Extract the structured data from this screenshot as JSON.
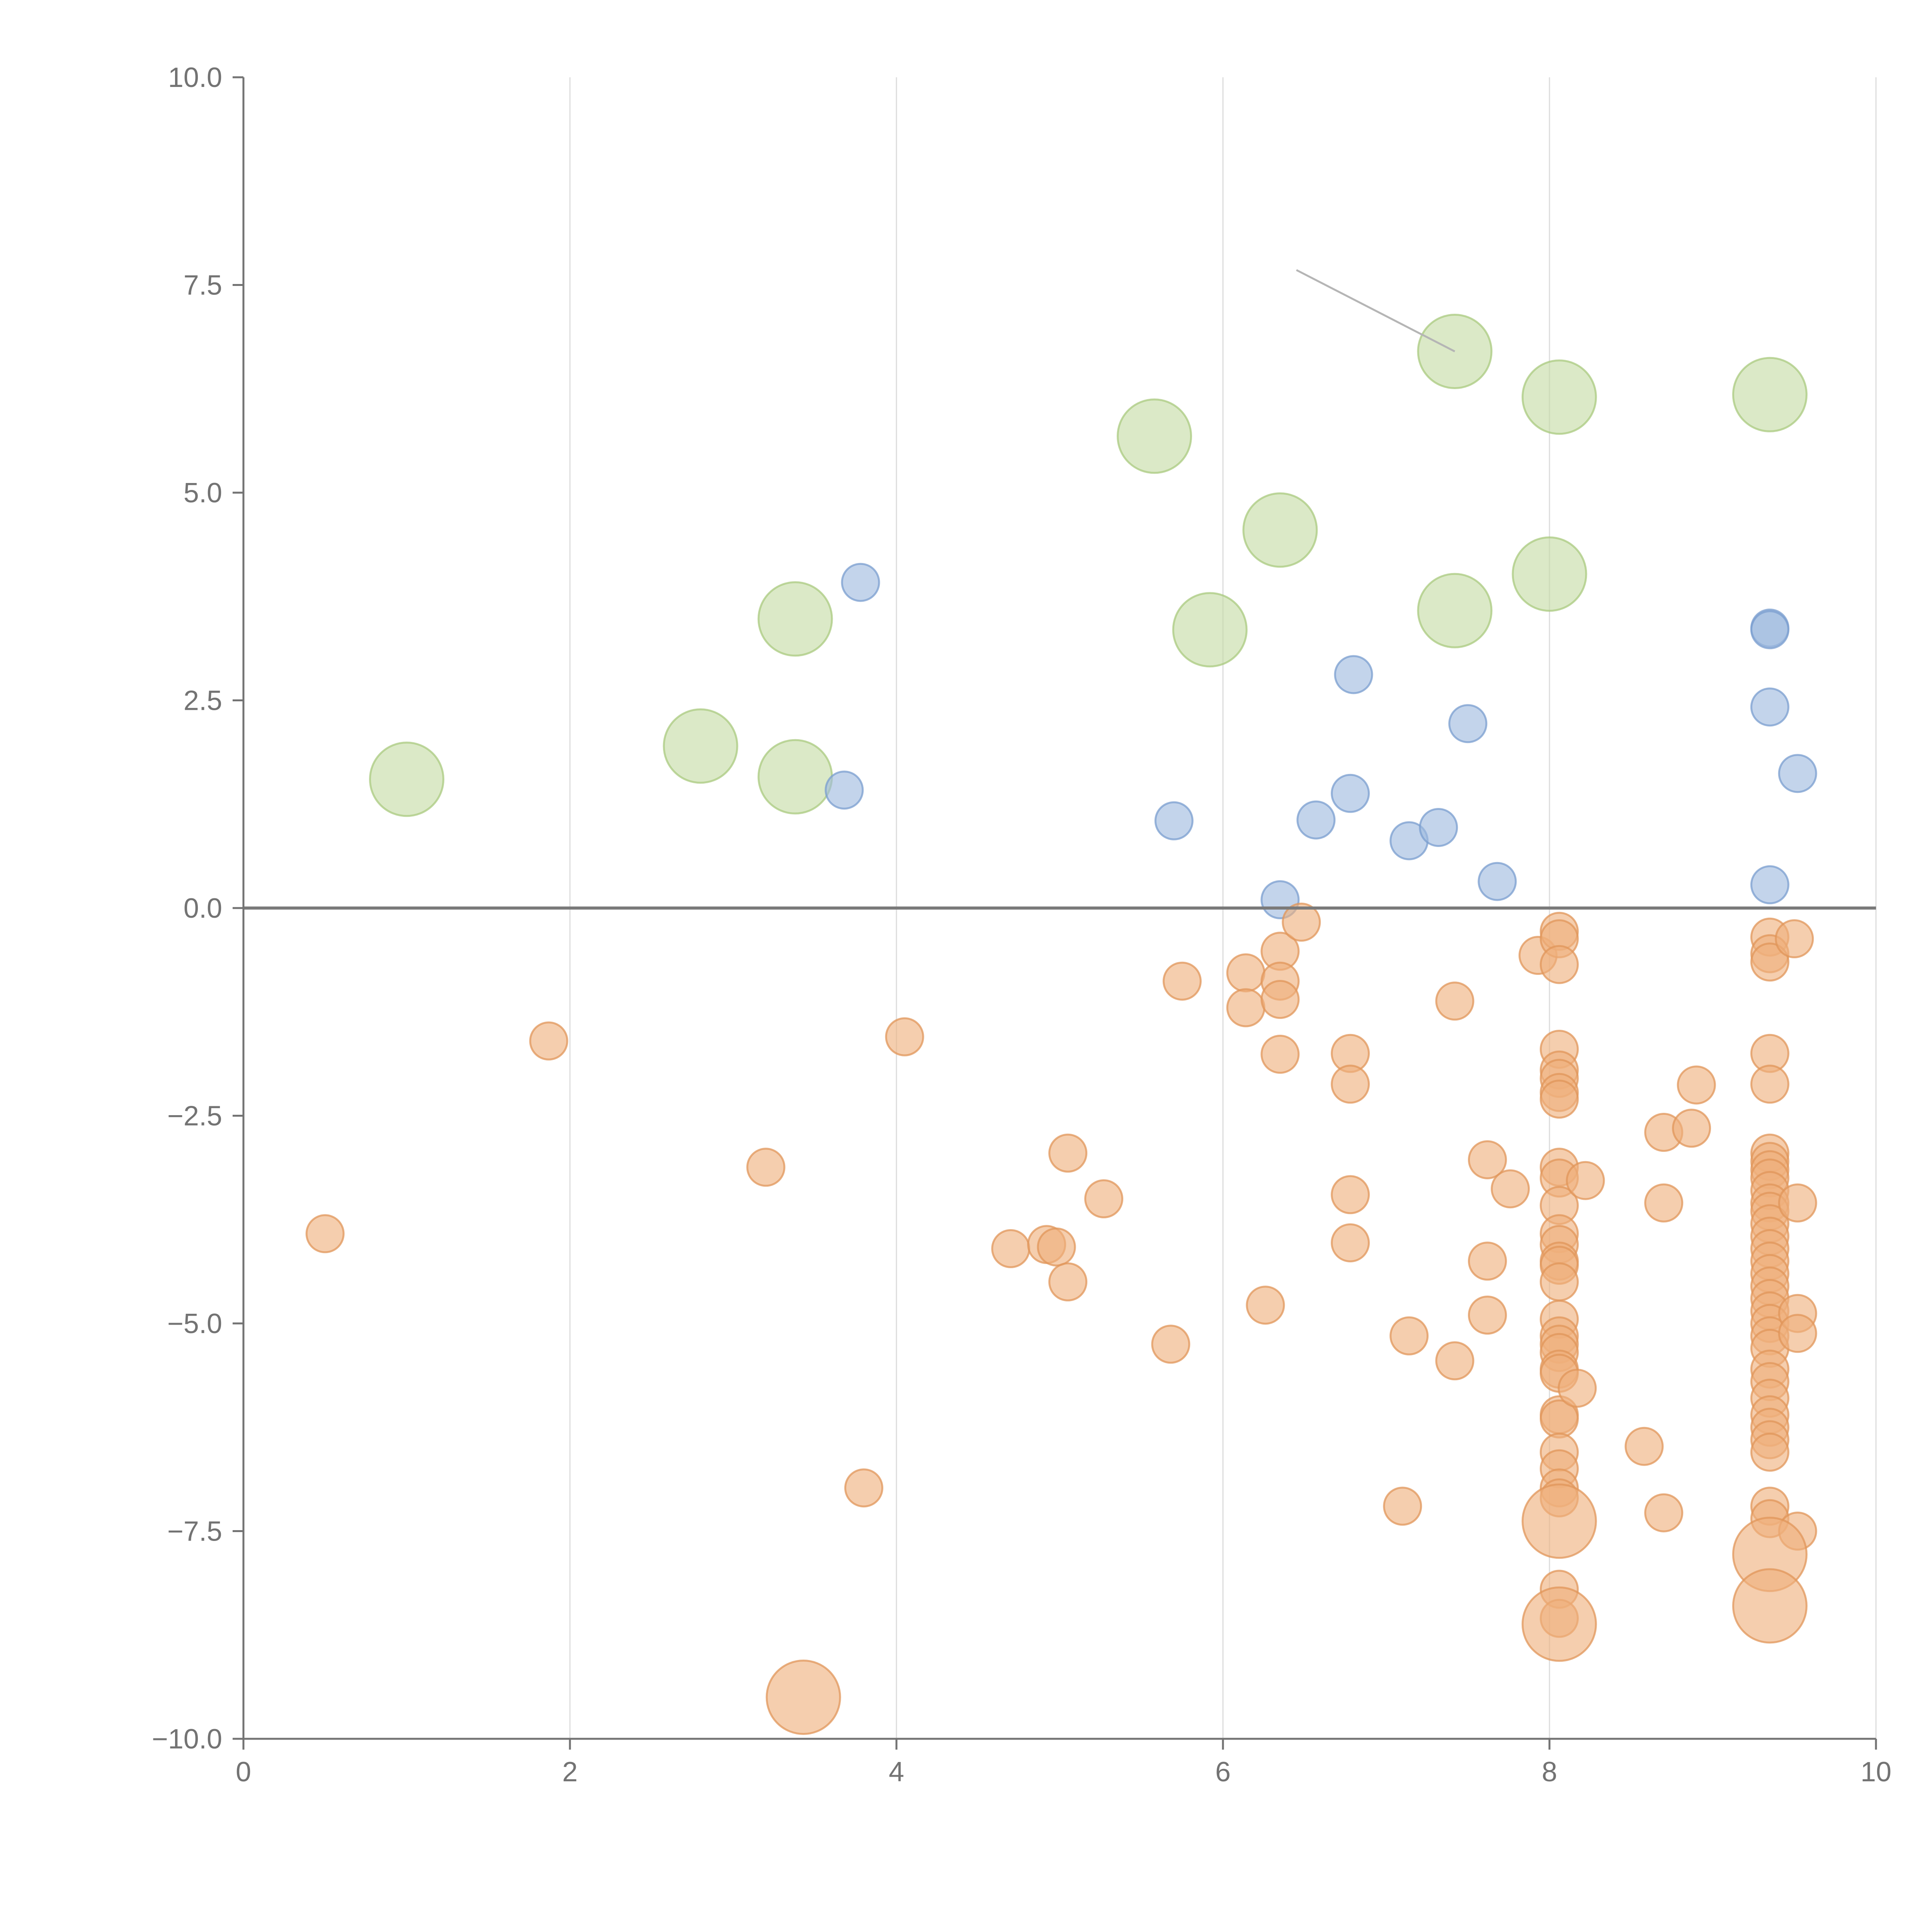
{
  "chart_data": {
    "type": "scatter",
    "title": "",
    "xlabel": "",
    "ylabel": "",
    "xlim": [
      0,
      10
    ],
    "ylim": [
      -10,
      10
    ],
    "x_ticks": [
      0,
      2,
      4,
      6,
      8,
      10
    ],
    "x_tick_labels": [
      "0",
      "2",
      "4",
      "6",
      "8",
      "10"
    ],
    "y_ticks": [
      10,
      7.5,
      5,
      2.5,
      0,
      -2.5,
      -5,
      -7.5,
      -10
    ],
    "y_tick_labels": [
      "10.0",
      "7.5",
      "5.0",
      "2.5",
      "0.0",
      "−2.5",
      "−5.0",
      "−7.5",
      "−10.0"
    ],
    "vertical_grid": true,
    "horizontal_grid": false,
    "zero_line": true,
    "legend": "none",
    "colors": {
      "green": "#c5dca4",
      "green_stroke": "#a9c97f",
      "blue": "#9eb9de",
      "blue_stroke": "#7a9dcf",
      "orange": "#efb07d",
      "orange_stroke": "#e0955a",
      "axis": "#737373",
      "grid": "#dcdcdc",
      "zero_line": "#7a7a7a"
    },
    "series": [
      {
        "name": "green",
        "size": "large",
        "points": [
          [
            1.0,
            1.55
          ],
          [
            2.8,
            1.95
          ],
          [
            3.38,
            1.58
          ],
          [
            3.38,
            3.48
          ],
          [
            5.58,
            5.68
          ],
          [
            5.92,
            3.35
          ],
          [
            6.35,
            4.55
          ],
          [
            7.42,
            6.7
          ],
          [
            7.42,
            3.58
          ],
          [
            8.0,
            4.02
          ],
          [
            8.06,
            6.15
          ],
          [
            9.35,
            6.18
          ]
        ]
      },
      {
        "name": "blue",
        "size": "small",
        "points": [
          [
            3.78,
            3.92
          ],
          [
            3.68,
            1.42
          ],
          [
            5.7,
            1.05
          ],
          [
            6.35,
            0.1
          ],
          [
            6.57,
            1.06
          ],
          [
            6.78,
            1.38
          ],
          [
            6.8,
            2.81
          ],
          [
            7.14,
            0.81
          ],
          [
            7.32,
            0.97
          ],
          [
            7.5,
            2.22
          ],
          [
            7.68,
            0.32
          ],
          [
            9.35,
            3.37
          ],
          [
            9.35,
            3.35
          ],
          [
            9.35,
            2.42
          ],
          [
            9.35,
            0.28
          ],
          [
            9.52,
            1.62
          ]
        ]
      },
      {
        "name": "orange",
        "size": "small",
        "points": [
          [
            0.5,
            -3.92
          ],
          [
            1.87,
            -1.6
          ],
          [
            3.2,
            -3.12
          ],
          [
            3.8,
            -6.98
          ],
          [
            4.05,
            -1.55
          ],
          [
            4.7,
            -4.1
          ],
          [
            4.92,
            -4.05
          ],
          [
            4.98,
            -4.08
          ],
          [
            5.05,
            -2.95
          ],
          [
            5.05,
            -4.5
          ],
          [
            5.27,
            -3.5
          ],
          [
            5.68,
            -5.25
          ],
          [
            5.75,
            -0.88
          ],
          [
            6.14,
            -0.78
          ],
          [
            6.14,
            -1.2
          ],
          [
            6.26,
            -4.78
          ],
          [
            6.35,
            -0.52
          ],
          [
            6.35,
            -0.88
          ],
          [
            6.35,
            -1.1
          ],
          [
            6.35,
            -1.76
          ],
          [
            6.48,
            -0.17
          ],
          [
            6.78,
            -1.75
          ],
          [
            6.78,
            -2.12
          ],
          [
            6.78,
            -3.45
          ],
          [
            6.78,
            -4.03
          ],
          [
            7.1,
            -7.2
          ],
          [
            7.14,
            -5.15
          ],
          [
            7.42,
            -1.12
          ],
          [
            7.42,
            -5.45
          ],
          [
            7.62,
            -3.03
          ],
          [
            7.62,
            -4.25
          ],
          [
            7.62,
            -4.9
          ],
          [
            7.76,
            -3.38
          ],
          [
            7.93,
            -0.57
          ],
          [
            8.06,
            -0.28
          ],
          [
            8.06,
            -0.37
          ],
          [
            8.06,
            -0.68
          ],
          [
            8.06,
            -1.7
          ],
          [
            8.06,
            -1.95
          ],
          [
            8.06,
            -2.05
          ],
          [
            8.06,
            -2.22
          ],
          [
            8.06,
            -2.3
          ],
          [
            8.06,
            -3.12
          ],
          [
            8.06,
            -3.25
          ],
          [
            8.06,
            -3.58
          ],
          [
            8.06,
            -3.92
          ],
          [
            8.06,
            -4.05
          ],
          [
            8.06,
            -4.25
          ],
          [
            8.06,
            -4.3
          ],
          [
            8.06,
            -4.5
          ],
          [
            8.06,
            -4.95
          ],
          [
            8.06,
            -5.15
          ],
          [
            8.06,
            -5.25
          ],
          [
            8.06,
            -5.35
          ],
          [
            8.06,
            -5.55
          ],
          [
            8.06,
            -5.6
          ],
          [
            8.06,
            -6.1
          ],
          [
            8.06,
            -6.15
          ],
          [
            8.06,
            -6.55
          ],
          [
            8.06,
            -6.75
          ],
          [
            8.06,
            -6.98
          ],
          [
            8.06,
            -7.1
          ],
          [
            8.06,
            -8.2
          ],
          [
            8.06,
            -8.55
          ],
          [
            8.17,
            -5.78
          ],
          [
            8.22,
            -3.28
          ],
          [
            8.58,
            -6.48
          ],
          [
            8.7,
            -2.7
          ],
          [
            8.7,
            -3.55
          ],
          [
            8.7,
            -7.28
          ],
          [
            8.87,
            -2.65
          ],
          [
            8.9,
            -2.13
          ],
          [
            9.35,
            -0.35
          ],
          [
            9.35,
            -0.55
          ],
          [
            9.35,
            -0.65
          ],
          [
            9.35,
            -1.75
          ],
          [
            9.35,
            -2.12
          ],
          [
            9.35,
            -2.95
          ],
          [
            9.35,
            -3.05
          ],
          [
            9.35,
            -3.15
          ],
          [
            9.35,
            -3.25
          ],
          [
            9.35,
            -3.4
          ],
          [
            9.35,
            -3.55
          ],
          [
            9.35,
            -3.65
          ],
          [
            9.35,
            -3.8
          ],
          [
            9.35,
            -3.95
          ],
          [
            9.35,
            -4.1
          ],
          [
            9.35,
            -4.25
          ],
          [
            9.35,
            -4.4
          ],
          [
            9.35,
            -4.55
          ],
          [
            9.35,
            -4.7
          ],
          [
            9.35,
            -4.85
          ],
          [
            9.35,
            -5.0
          ],
          [
            9.35,
            -5.15
          ],
          [
            9.35,
            -5.3
          ],
          [
            9.35,
            -5.55
          ],
          [
            9.35,
            -5.7
          ],
          [
            9.35,
            -5.9
          ],
          [
            9.35,
            -6.1
          ],
          [
            9.35,
            -6.25
          ],
          [
            9.35,
            -6.4
          ],
          [
            9.35,
            -6.55
          ],
          [
            9.35,
            -7.2
          ],
          [
            9.35,
            -7.35
          ],
          [
            9.5,
            -0.37
          ],
          [
            9.52,
            -3.55
          ],
          [
            9.52,
            -4.88
          ],
          [
            9.52,
            -5.12
          ],
          [
            9.52,
            -7.5
          ]
        ]
      },
      {
        "name": "orange",
        "size": "large",
        "points": [
          [
            3.43,
            -9.5
          ],
          [
            8.06,
            -7.38
          ],
          [
            8.06,
            -8.62
          ],
          [
            9.35,
            -7.78
          ],
          [
            9.35,
            -8.4
          ]
        ]
      }
    ],
    "annotation_line": {
      "from": [
        6.45,
        7.68
      ],
      "to": [
        7.42,
        6.7
      ]
    }
  }
}
